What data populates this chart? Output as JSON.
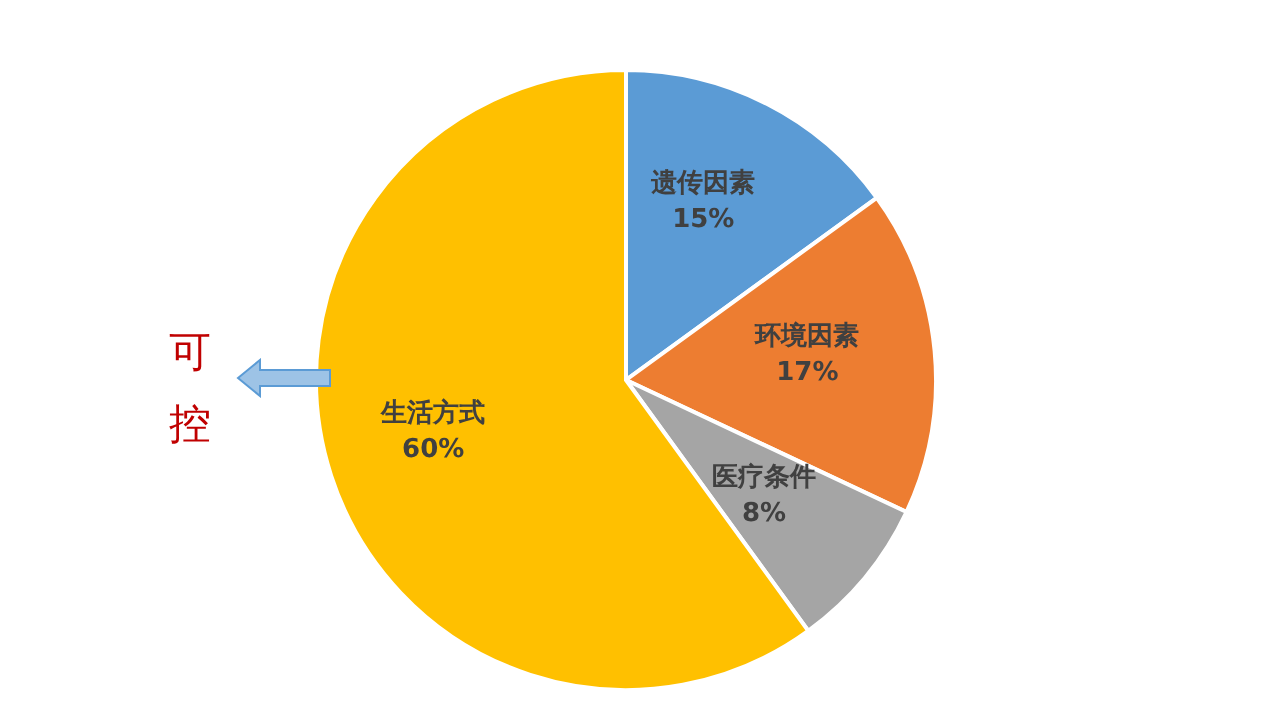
{
  "chart_data": {
    "type": "pie",
    "categories": [
      "遗传因素",
      "环境因素",
      "医疗条件",
      "生活方式"
    ],
    "values": [
      15,
      17,
      8,
      60
    ],
    "value_labels": [
      "15%",
      "17%",
      "8%",
      "60%"
    ],
    "colors": [
      "#5b9bd5",
      "#ed7d31",
      "#a5a5a5",
      "#ffc000"
    ],
    "annotations": [
      "可控"
    ]
  }
}
